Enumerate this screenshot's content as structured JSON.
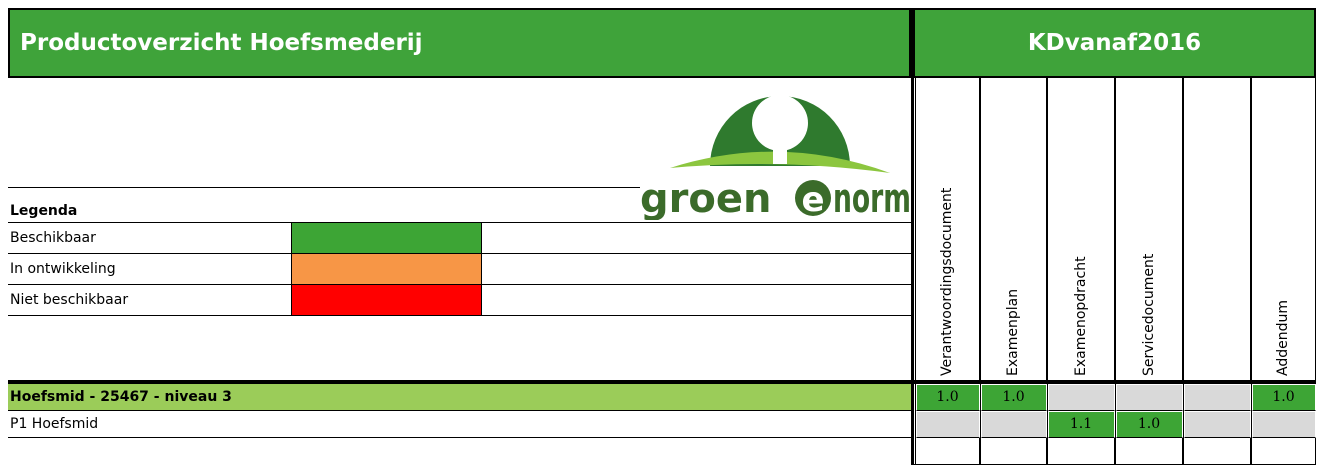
{
  "header": {
    "title": "Productoverzicht Hoefsmederij",
    "kd": "KDvanaf2016"
  },
  "logo": {
    "left": "groen",
    "middle": "e",
    "right": "norm"
  },
  "legend": {
    "title": "Legenda",
    "items": [
      {
        "label": "Beschikbaar",
        "color": "#3da535"
      },
      {
        "label": "In ontwikkeling",
        "color": "#f79646"
      },
      {
        "label": "Niet beschikbaar",
        "color": "#ff0000"
      }
    ]
  },
  "columns": [
    "Verantwoordingsdocument",
    "Examenplan",
    "Examenopdracht",
    "Servicedocument",
    null,
    "Addendum"
  ],
  "rows": [
    {
      "label": "Hoefsmid - 25467 - niveau 3",
      "color": "#9bcc59",
      "bold": true,
      "cells": [
        {
          "value": "1.0",
          "color": "#3da535"
        },
        {
          "value": "1.0",
          "color": "#3da535"
        },
        {
          "value": null,
          "color": "#d9d9d9"
        },
        {
          "value": null,
          "color": "#d9d9d9"
        },
        {
          "value": null,
          "color": "#d9d9d9"
        },
        {
          "value": "1.0",
          "color": "#3da535"
        }
      ]
    },
    {
      "label": "P1 Hoefsmid",
      "color": "#ffffff",
      "bold": false,
      "cells": [
        {
          "value": null,
          "color": "#d9d9d9"
        },
        {
          "value": null,
          "color": "#d9d9d9"
        },
        {
          "value": "1.1",
          "color": "#3da535"
        },
        {
          "value": "1.0",
          "color": "#3da535"
        },
        {
          "value": null,
          "color": "#d9d9d9"
        },
        {
          "value": null,
          "color": "#d9d9d9"
        }
      ]
    }
  ]
}
